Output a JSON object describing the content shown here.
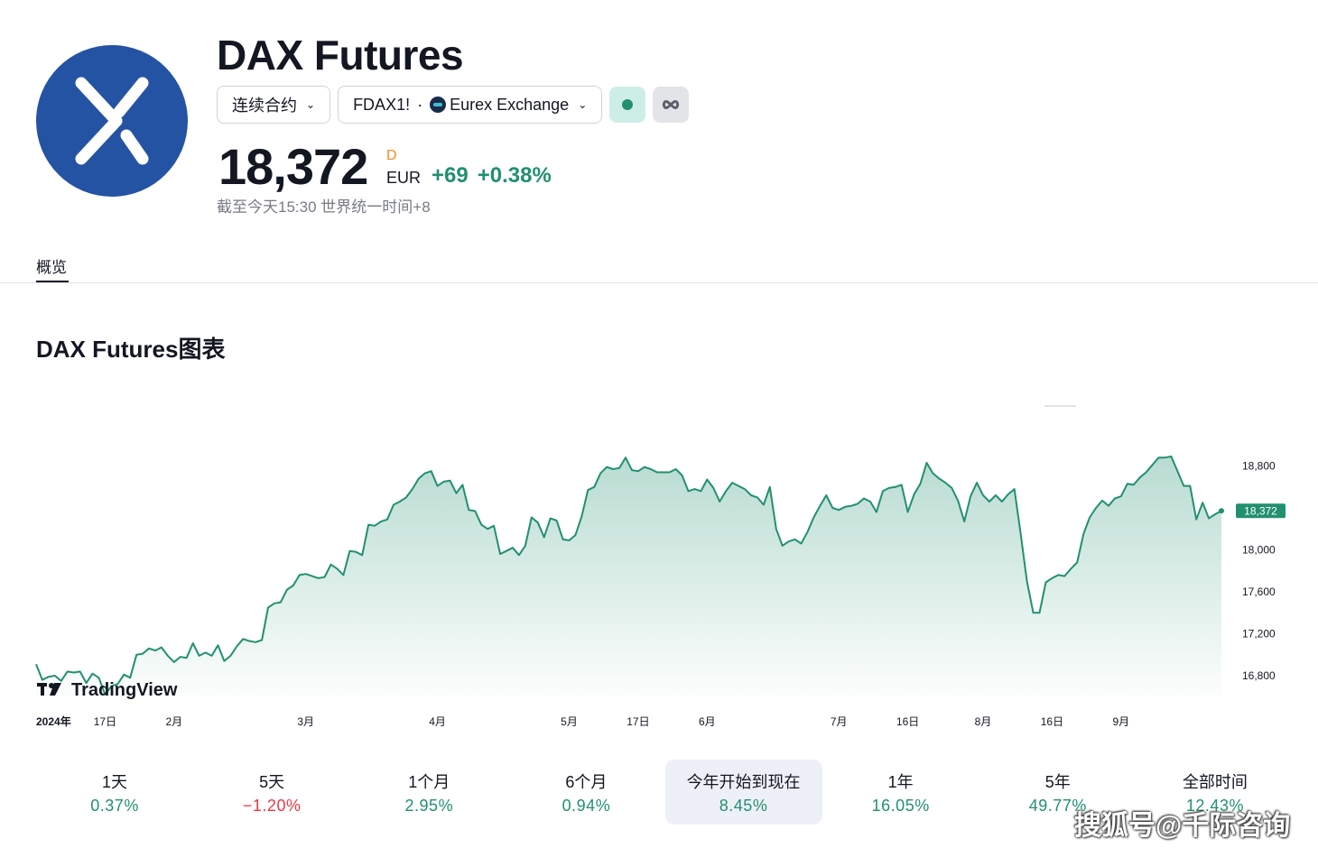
{
  "header": {
    "title": "DAX Futures",
    "contract_selector": "连续合约",
    "symbol": "FDAX1!",
    "separator": "·",
    "exchange": "Eurex Exchange",
    "logo_icon": "dax-x-logo-icon",
    "market_status_icon": "market-open-dot-icon",
    "infinity_icon": "infinity-icon",
    "logo_color": "#2553a4"
  },
  "quote": {
    "price": "18,372",
    "interval": "D",
    "currency": "EUR",
    "change": "+69",
    "change_percent": "+0.38%",
    "as_of": "截至今天15:30 世界统一时间+8"
  },
  "tabs": [
    {
      "label": "概览"
    }
  ],
  "chart_section": {
    "title": "DAX Futures图表",
    "attribution": "TradingView"
  },
  "chart_data": {
    "type": "area",
    "y_ticks": [
      16800,
      17200,
      17600,
      18000,
      18800
    ],
    "y_tick_labels": [
      "16,800",
      "17,200",
      "17,600",
      "18,000",
      "18,800"
    ],
    "x_labels": [
      {
        "label": "2024年",
        "i": 0
      },
      {
        "label": "17日",
        "i": 11
      },
      {
        "label": "2月",
        "i": 22
      },
      {
        "label": "3月",
        "i": 43
      },
      {
        "label": "4月",
        "i": 64
      },
      {
        "label": "5月",
        "i": 85
      },
      {
        "label": "17日",
        "i": 96
      },
      {
        "label": "6月",
        "i": 107
      },
      {
        "label": "7月",
        "i": 128
      },
      {
        "label": "16日",
        "i": 139
      },
      {
        "label": "8月",
        "i": 151
      },
      {
        "label": "16日",
        "i": 162
      },
      {
        "label": "9月",
        "i": 173
      }
    ],
    "last_value_label": "18,372",
    "values": [
      16910,
      16760,
      16790,
      16800,
      16750,
      16840,
      16830,
      16840,
      16730,
      16820,
      16780,
      16620,
      16700,
      16720,
      16810,
      16780,
      17000,
      17010,
      17060,
      17040,
      17070,
      16990,
      16930,
      16980,
      16970,
      17110,
      16990,
      17020,
      16990,
      17090,
      16940,
      16990,
      17080,
      17150,
      17130,
      17120,
      17140,
      17450,
      17490,
      17500,
      17620,
      17660,
      17760,
      17770,
      17750,
      17730,
      17740,
      17860,
      17820,
      17760,
      17990,
      17980,
      17950,
      18240,
      18230,
      18270,
      18290,
      18430,
      18460,
      18500,
      18580,
      18680,
      18730,
      18750,
      18610,
      18650,
      18660,
      18540,
      18620,
      18380,
      18370,
      18240,
      18200,
      18230,
      17960,
      17990,
      18020,
      17950,
      18040,
      18310,
      18260,
      18120,
      18300,
      18280,
      18100,
      18090,
      18140,
      18320,
      18570,
      18600,
      18730,
      18790,
      18770,
      18780,
      18880,
      18760,
      18750,
      18790,
      18770,
      18740,
      18740,
      18740,
      18770,
      18710,
      18560,
      18580,
      18560,
      18670,
      18590,
      18460,
      18560,
      18640,
      18610,
      18580,
      18520,
      18500,
      18430,
      18600,
      18200,
      18040,
      18080,
      18100,
      18060,
      18170,
      18310,
      18420,
      18520,
      18400,
      18380,
      18410,
      18420,
      18440,
      18490,
      18460,
      18360,
      18560,
      18590,
      18600,
      18620,
      18360,
      18530,
      18630,
      18830,
      18730,
      18680,
      18640,
      18590,
      18470,
      18270,
      18510,
      18640,
      18520,
      18460,
      18520,
      18460,
      18530,
      18580,
      18150,
      17700,
      17400,
      17400,
      17690,
      17730,
      17760,
      17750,
      17820,
      17880,
      18150,
      18310,
      18400,
      18470,
      18420,
      18490,
      18510,
      18630,
      18620,
      18690,
      18740,
      18810,
      18880,
      18880,
      18890,
      18750,
      18610,
      18610,
      18290,
      18450,
      18300,
      18340,
      18372
    ]
  },
  "periods": [
    {
      "label": "1天",
      "value": "0.37%",
      "dir": "up"
    },
    {
      "label": "5天",
      "value": "−1.20%",
      "dir": "down"
    },
    {
      "label": "1个月",
      "value": "2.95%",
      "dir": "up"
    },
    {
      "label": "6个月",
      "value": "0.94%",
      "dir": "up"
    },
    {
      "label": "今年开始到现在",
      "value": "8.45%",
      "dir": "up",
      "active": true
    },
    {
      "label": "1年",
      "value": "16.05%",
      "dir": "up"
    },
    {
      "label": "5年",
      "value": "49.77%",
      "dir": "up"
    },
    {
      "label": "全部时间",
      "value": "12.43%",
      "dir": "up"
    }
  ],
  "colors": {
    "up": "#22906f",
    "down": "#f23645",
    "line": "#22906f",
    "text": "#131722",
    "muted": "#787b86"
  },
  "watermark": "搜狐号@千际咨询"
}
